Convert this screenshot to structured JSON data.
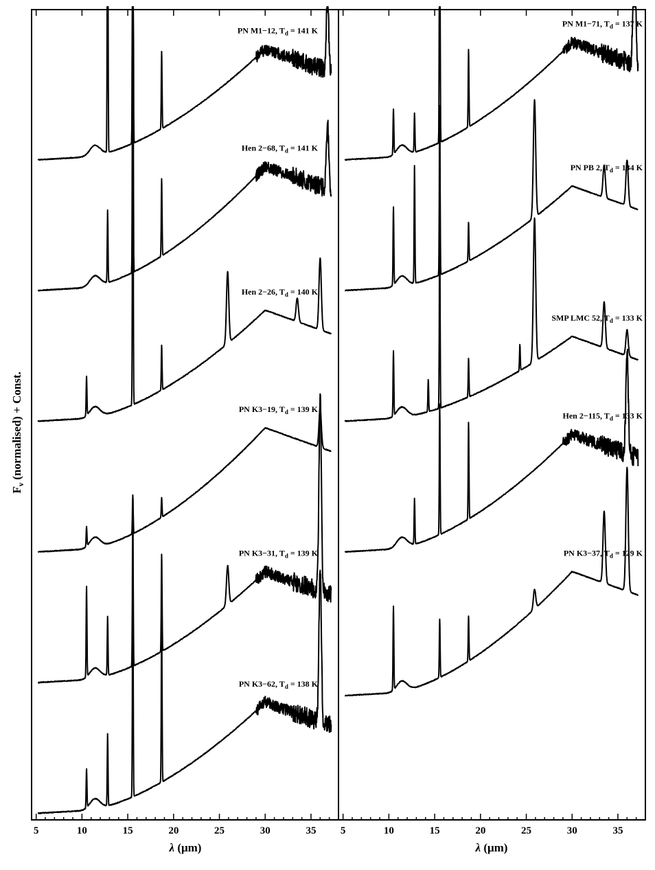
{
  "chart_data": {
    "type": "line",
    "ylabel": "F_ν (normalised) + Const.",
    "ylabel_main": "F",
    "ylabel_sub": "ν",
    "ylabel_rest": " (normalised) + Const.",
    "xlabel": "λ (μm)",
    "xlabel_main": "λ",
    "xlabel_rest": " (μm)",
    "xlim": [
      4.5,
      38.0
    ],
    "xticks": [
      5,
      10,
      15,
      20,
      25,
      30,
      35
    ],
    "grid": false,
    "lines_um": [
      9.0,
      10.5,
      12.8,
      15.55,
      18.7,
      33.5,
      36.0
    ],
    "panels": [
      {
        "series": [
          {
            "name": "PN M1−12",
            "temperature": "141 K",
            "offset": 5,
            "plateau": 0.85,
            "noisy": true,
            "peaks": [
              [
                12.8,
                3.0
              ],
              [
                15.55,
                4.0
              ],
              [
                18.7,
                0.6
              ],
              [
                36.8,
                0.6
              ]
            ]
          },
          {
            "name": "Hen 2−68",
            "temperature": "141 K",
            "offset": 4,
            "plateau": 0.95,
            "noisy": true,
            "peaks": [
              [
                12.8,
                0.55
              ],
              [
                15.55,
                2.8
              ],
              [
                18.7,
                0.6
              ],
              [
                36.8,
                0.5
              ]
            ]
          },
          {
            "name": "Hen 2−26",
            "temperature": "140 K",
            "offset": 3,
            "plateau": 0.85,
            "noisy": false,
            "peaks": [
              [
                10.5,
                0.3
              ],
              [
                15.55,
                2.5
              ],
              [
                18.7,
                0.35
              ],
              [
                25.9,
                0.55
              ],
              [
                33.5,
                0.18
              ],
              [
                36.0,
                0.55
              ]
            ]
          },
          {
            "name": "PN K3−19",
            "temperature": "139 K",
            "offset": 2,
            "plateau": 0.95,
            "noisy": false,
            "peaks": [
              [
                10.5,
                0.15
              ],
              [
                15.55,
                0.3
              ],
              [
                18.7,
                0.15
              ],
              [
                36.0,
                0.3
              ]
            ]
          },
          {
            "name": "PN K3−31",
            "temperature": "139 K",
            "offset": 1,
            "plateau": 0.85,
            "noisy": true,
            "peaks": [
              [
                10.5,
                0.7
              ],
              [
                12.8,
                0.45
              ],
              [
                15.55,
                1.2
              ],
              [
                18.7,
                0.75
              ],
              [
                25.9,
                0.3
              ],
              [
                36.0,
                1.5
              ]
            ]
          },
          {
            "name": "PN K3−62",
            "temperature": "138 K",
            "offset": 0,
            "plateau": 0.85,
            "noisy": true,
            "peaks": [
              [
                10.5,
                0.3
              ],
              [
                12.8,
                0.55
              ],
              [
                15.55,
                1.7
              ],
              [
                18.7,
                1.25
              ],
              [
                36.0,
                1.2
              ]
            ]
          }
        ]
      },
      {
        "series": [
          {
            "name": "PN M1−71",
            "temperature": "137 K",
            "offset": 5,
            "plateau": 0.9,
            "noisy": true,
            "peaks": [
              [
                10.5,
                0.35
              ],
              [
                12.8,
                0.3
              ],
              [
                15.55,
                2.5
              ],
              [
                18.7,
                0.6
              ],
              [
                36.8,
                1.3
              ]
            ]
          },
          {
            "name": "PN PB 2",
            "temperature": "134 K",
            "offset": 4,
            "plateau": 0.8,
            "noisy": false,
            "peaks": [
              [
                10.5,
                0.6
              ],
              [
                12.8,
                0.9
              ],
              [
                15.55,
                1.3
              ],
              [
                18.7,
                0.3
              ],
              [
                25.9,
                0.9
              ],
              [
                33.5,
                0.25
              ],
              [
                36.0,
                0.35
              ]
            ]
          },
          {
            "name": "SMP LMC 52",
            "temperature": "133 K",
            "offset": 3,
            "plateau": 0.65,
            "noisy": false,
            "peaks": [
              [
                10.5,
                0.5
              ],
              [
                14.3,
                0.25
              ],
              [
                15.55,
                1.4
              ],
              [
                18.7,
                0.3
              ],
              [
                24.3,
                0.2
              ],
              [
                25.9,
                1.1
              ],
              [
                33.5,
                0.35
              ],
              [
                36.0,
                0.2
              ]
            ]
          },
          {
            "name": "Hen 2−115",
            "temperature": "133 K",
            "offset": 2,
            "plateau": 0.9,
            "noisy": true,
            "peaks": [
              [
                12.8,
                0.35
              ],
              [
                15.55,
                1.0
              ],
              [
                18.7,
                0.75
              ],
              [
                36.0,
                0.8
              ]
            ]
          },
          {
            "name": "PN K3−37",
            "temperature": "129 K",
            "offset": 0.9,
            "plateau": 0.95,
            "noisy": false,
            "peaks": [
              [
                10.5,
                0.65
              ],
              [
                15.55,
                0.45
              ],
              [
                18.7,
                0.35
              ],
              [
                25.9,
                0.15
              ],
              [
                33.5,
                0.55
              ],
              [
                36.0,
                0.95
              ]
            ]
          }
        ]
      }
    ]
  }
}
